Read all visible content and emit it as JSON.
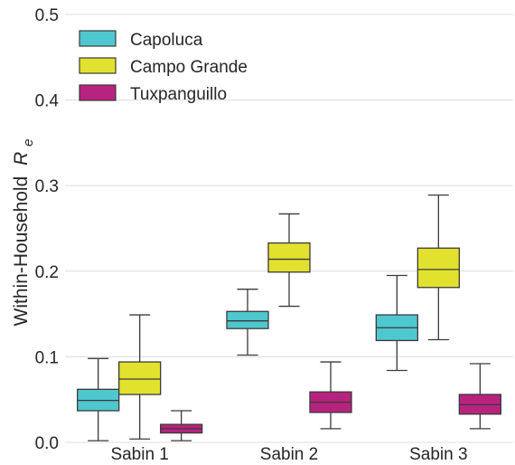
{
  "chart_data": {
    "type": "box",
    "ylabel": "Within-Household",
    "ylabel_symbol": "R",
    "ylabel_subscript": "e",
    "ylim": [
      0,
      0.5
    ],
    "yticks": [
      "0.0",
      "0.1",
      "0.2",
      "0.3",
      "0.4",
      "0.5"
    ],
    "ytick_values": [
      0,
      0.1,
      0.2,
      0.3,
      0.4,
      0.5
    ],
    "grid": "horizontal",
    "legend_position": "top-left",
    "categories": [
      "Sabin 1",
      "Sabin 2",
      "Sabin 3"
    ],
    "series": [
      {
        "name": "Capoluca",
        "color": "#4fc7cf",
        "boxes": [
          {
            "whisker_low": 0.002,
            "q1": 0.037,
            "median": 0.049,
            "q3": 0.062,
            "whisker_high": 0.098
          },
          {
            "whisker_low": 0.102,
            "q1": 0.133,
            "median": 0.142,
            "q3": 0.153,
            "whisker_high": 0.179
          },
          {
            "whisker_low": 0.084,
            "q1": 0.119,
            "median": 0.134,
            "q3": 0.149,
            "whisker_high": 0.195
          }
        ]
      },
      {
        "name": "Campo Grande",
        "color": "#e2e22e",
        "boxes": [
          {
            "whisker_low": 0.004,
            "q1": 0.056,
            "median": 0.074,
            "q3": 0.094,
            "whisker_high": 0.149
          },
          {
            "whisker_low": 0.159,
            "q1": 0.199,
            "median": 0.214,
            "q3": 0.233,
            "whisker_high": 0.267
          },
          {
            "whisker_low": 0.12,
            "q1": 0.181,
            "median": 0.202,
            "q3": 0.227,
            "whisker_high": 0.289
          }
        ]
      },
      {
        "name": "Tuxpanguillo",
        "color": "#b8237f",
        "boxes": [
          {
            "whisker_low": 0.002,
            "q1": 0.011,
            "median": 0.016,
            "q3": 0.021,
            "whisker_high": 0.037
          },
          {
            "whisker_low": 0.016,
            "q1": 0.035,
            "median": 0.047,
            "q3": 0.059,
            "whisker_high": 0.094
          },
          {
            "whisker_low": 0.016,
            "q1": 0.033,
            "median": 0.044,
            "q3": 0.056,
            "whisker_high": 0.092
          }
        ]
      }
    ]
  }
}
